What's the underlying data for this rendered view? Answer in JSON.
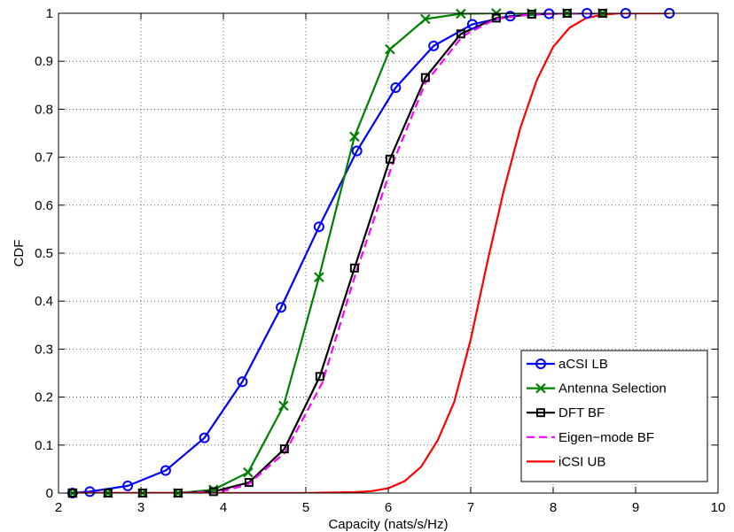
{
  "chart_data": {
    "type": "line",
    "xlabel": "Capacity (nats/s/Hz)",
    "ylabel": "CDF",
    "xlim": [
      2,
      10
    ],
    "ylim": [
      0,
      1
    ],
    "xticks": [
      2,
      3,
      4,
      5,
      6,
      7,
      8,
      9,
      10
    ],
    "yticks": [
      0,
      0.1,
      0.2,
      0.3,
      0.4,
      0.5,
      0.6,
      0.7,
      0.8,
      0.9,
      1
    ],
    "xtick_labels": [
      "2",
      "3",
      "4",
      "5",
      "6",
      "7",
      "8",
      "9",
      "10"
    ],
    "ytick_labels": [
      "0",
      "0.1",
      "0.2",
      "0.3",
      "0.4",
      "0.5",
      "0.6",
      "0.7",
      "0.8",
      "0.9",
      "1"
    ],
    "grid": true,
    "legend_position": "bottom-right",
    "series": [
      {
        "name": "aCSI LB",
        "color": "#0000ff",
        "dash": false,
        "marker": "circle",
        "x": [
          2.17,
          2.38,
          2.84,
          3.3,
          3.77,
          4.23,
          4.7,
          5.16,
          5.62,
          6.09,
          6.55,
          7.02,
          7.48,
          7.95,
          8.41,
          8.88,
          9.41
        ],
        "y": [
          0.0,
          0.003,
          0.015,
          0.047,
          0.115,
          0.232,
          0.387,
          0.555,
          0.713,
          0.845,
          0.932,
          0.977,
          0.994,
          0.999,
          1.0,
          1.0,
          1.0
        ]
      },
      {
        "name": "Antenna Selection",
        "color": "#008000",
        "dash": false,
        "marker": "x",
        "x": [
          2.17,
          2.6,
          3.02,
          3.45,
          3.88,
          4.3,
          4.73,
          5.16,
          5.59,
          6.02,
          6.45,
          6.88,
          7.31,
          7.74,
          8.17,
          8.6
        ],
        "y": [
          0.0,
          0.0,
          0.0,
          0.0,
          0.007,
          0.043,
          0.182,
          0.45,
          0.743,
          0.925,
          0.988,
          0.999,
          1.0,
          1.0,
          1.0,
          1.0
        ]
      },
      {
        "name": "DFT BF",
        "color": "#000000",
        "dash": false,
        "marker": "square",
        "x": [
          2.17,
          2.6,
          3.02,
          3.45,
          3.88,
          4.31,
          4.74,
          5.17,
          5.59,
          6.02,
          6.45,
          6.88,
          7.31,
          7.74,
          8.17,
          8.6
        ],
        "y": [
          0.0,
          0.0,
          0.0,
          0.0,
          0.003,
          0.022,
          0.092,
          0.243,
          0.469,
          0.696,
          0.866,
          0.957,
          0.99,
          0.998,
          1.0,
          1.0
        ]
      },
      {
        "name": "Eigen−mode BF",
        "color": "#ff00ff",
        "dash": true,
        "marker": "none",
        "x": [
          2.17,
          3.5,
          4.0,
          4.3,
          4.75,
          5.2,
          5.6,
          6.05,
          6.45,
          6.9,
          7.3,
          7.75,
          8.2,
          8.6
        ],
        "y": [
          0.0,
          0.0,
          0.004,
          0.018,
          0.085,
          0.23,
          0.455,
          0.685,
          0.855,
          0.952,
          0.988,
          0.998,
          1.0,
          1.0
        ]
      },
      {
        "name": "iCSI UB",
        "color": "#ff0000",
        "dash": false,
        "marker": "none",
        "x": [
          2.17,
          5.0,
          5.6,
          5.8,
          6.0,
          6.2,
          6.4,
          6.6,
          6.8,
          7.0,
          7.2,
          7.4,
          7.6,
          7.8,
          8.0,
          8.2,
          8.4,
          8.6,
          8.8,
          9.0,
          9.4
        ],
        "y": [
          0.0,
          0.0,
          0.002,
          0.004,
          0.01,
          0.025,
          0.055,
          0.11,
          0.19,
          0.32,
          0.48,
          0.63,
          0.76,
          0.86,
          0.93,
          0.97,
          0.99,
          0.997,
          1.0,
          1.0,
          1.0
        ]
      }
    ]
  }
}
